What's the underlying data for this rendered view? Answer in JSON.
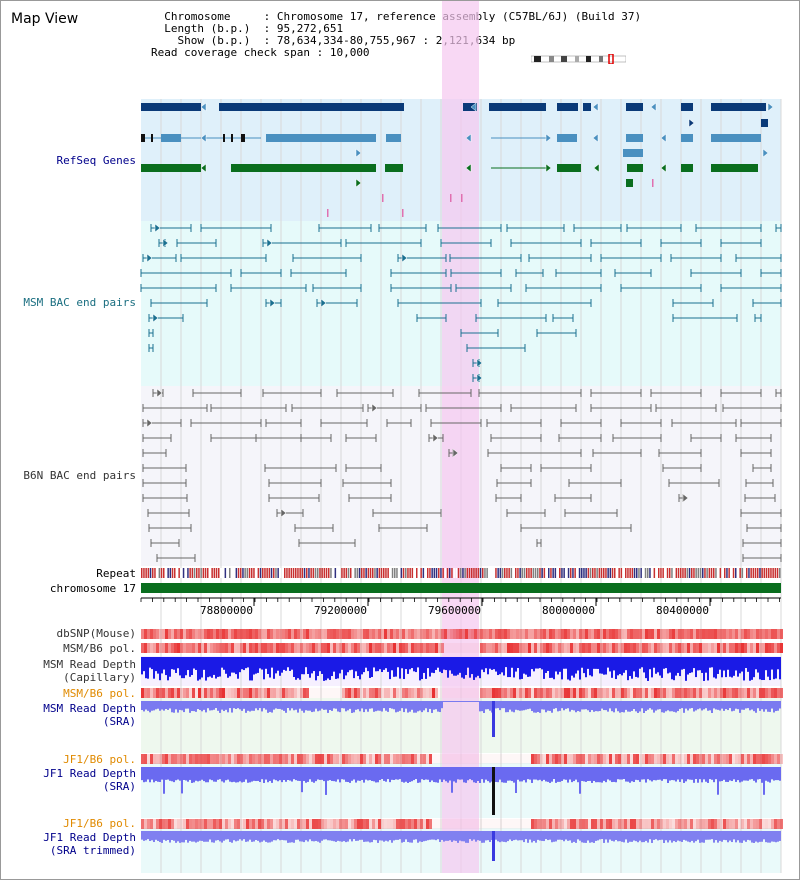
{
  "title": "Map View",
  "info": {
    "chromosome_key": "Chromosome",
    "chromosome_val": ": Chromosome 17, reference assembly (C57BL/6J) (Build 37)",
    "length_key": "Length (b.p.)",
    "length_val": ": 95,272,651",
    "show_key": "Show (b.p.)",
    "show_val": ": 78,634,334-80,755,967 : 2,121,634 bp",
    "coverage_key": "Read coverage check span",
    "coverage_val": ": 10,000"
  },
  "tracks": {
    "refseq": "RefSeq Genes",
    "msm_bac": "MSM BAC end pairs",
    "b6n_bac": "B6N BAC end pairs",
    "repeat": "Repeat",
    "chromosome": "chromosome 17",
    "dbsnp": "dbSNP(Mouse)",
    "msm_b6_pol_1": "MSM/B6 pol.",
    "msm_read_depth_cap_1": "MSM Read Depth",
    "msm_read_depth_cap_2": "(Capillary)",
    "msm_b6_pol_2": "MSM/B6 pol.",
    "msm_read_depth_sra_1": "MSM Read Depth",
    "msm_read_depth_sra_2": "(SRA)",
    "jf1_b6_pol_1": "JF1/B6 pol.",
    "jf1_read_depth_sra_1": "JF1 Read Depth",
    "jf1_read_depth_sra_2": "(SRA)",
    "jf1_b6_pol_2": "JF1/B6 pol.",
    "jf1_read_depth_trim_1": "JF1 Read Depth",
    "jf1_read_depth_trim_2": "(SRA trimmed)"
  },
  "axis": {
    "ticks": [
      "78800000",
      "79200000",
      "79600000",
      "80000000",
      "80400000"
    ]
  },
  "colors": {
    "refseq_dark": "#0a3a78",
    "refseq_light": "#4a90c0",
    "refseq_green": "#0a6e1e",
    "msm_bac": "#1a7090",
    "b6n_bac": "#666666",
    "highlight": "#f5c8f0",
    "label_blue": "#00008b",
    "label_teal": "#1a6e80",
    "label_orange": "#e08a00",
    "label_gray": "#333333",
    "snp_red": "#e83030",
    "depth_blue": "#1a1ae6",
    "sra_blue": "#7a7af0"
  }
}
